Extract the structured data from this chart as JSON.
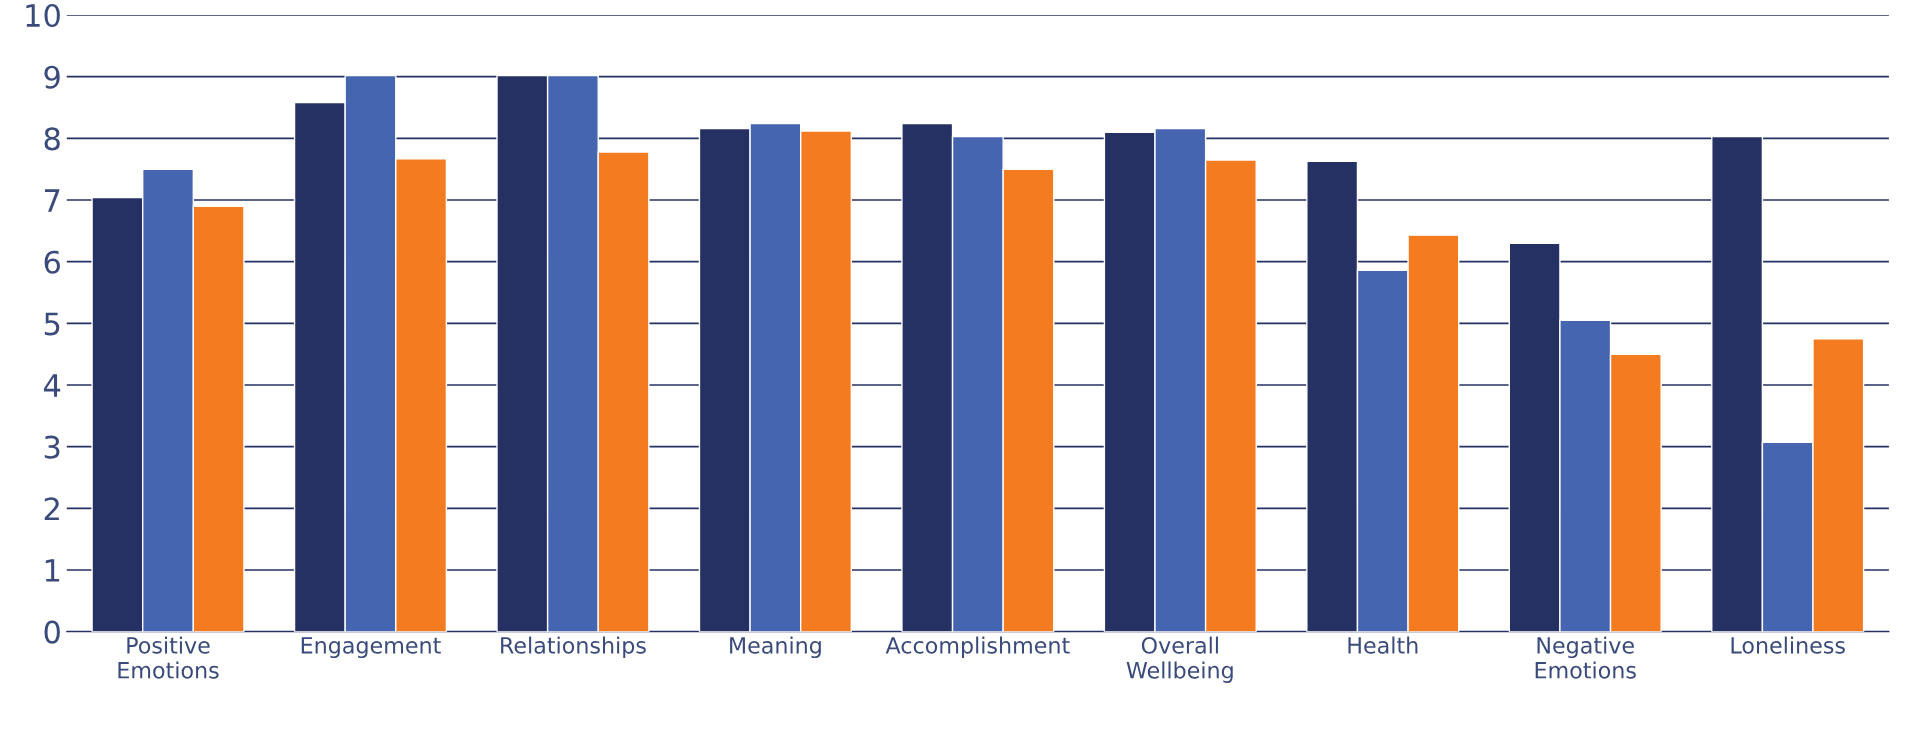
{
  "chart_data": {
    "type": "bar",
    "categories": [
      "Positive\nEmotions",
      "Engagement",
      "Relationships",
      "Meaning",
      "Accomplishment",
      "Overall\nWellbeing",
      "Health",
      "Negative\nEmotions",
      "Loneliness"
    ],
    "series": [
      {
        "color": "#263163",
        "values": [
          7.04,
          8.58,
          9.02,
          8.16,
          8.24,
          8.1,
          7.63,
          6.3,
          8.03
        ]
      },
      {
        "color": "#4665b0",
        "values": [
          7.5,
          9.02,
          9.02,
          8.24,
          8.03,
          8.16,
          5.86,
          5.05,
          3.07
        ]
      },
      {
        "color": "#f47b20",
        "values": [
          6.9,
          7.67,
          7.78,
          8.12,
          7.5,
          7.65,
          6.43,
          4.5,
          4.75
        ]
      }
    ],
    "ylim": [
      0,
      10
    ],
    "yticks": [
      0,
      1,
      2,
      3,
      4,
      5,
      6,
      7,
      8,
      9,
      10
    ],
    "grid": "y",
    "legend": false
  }
}
